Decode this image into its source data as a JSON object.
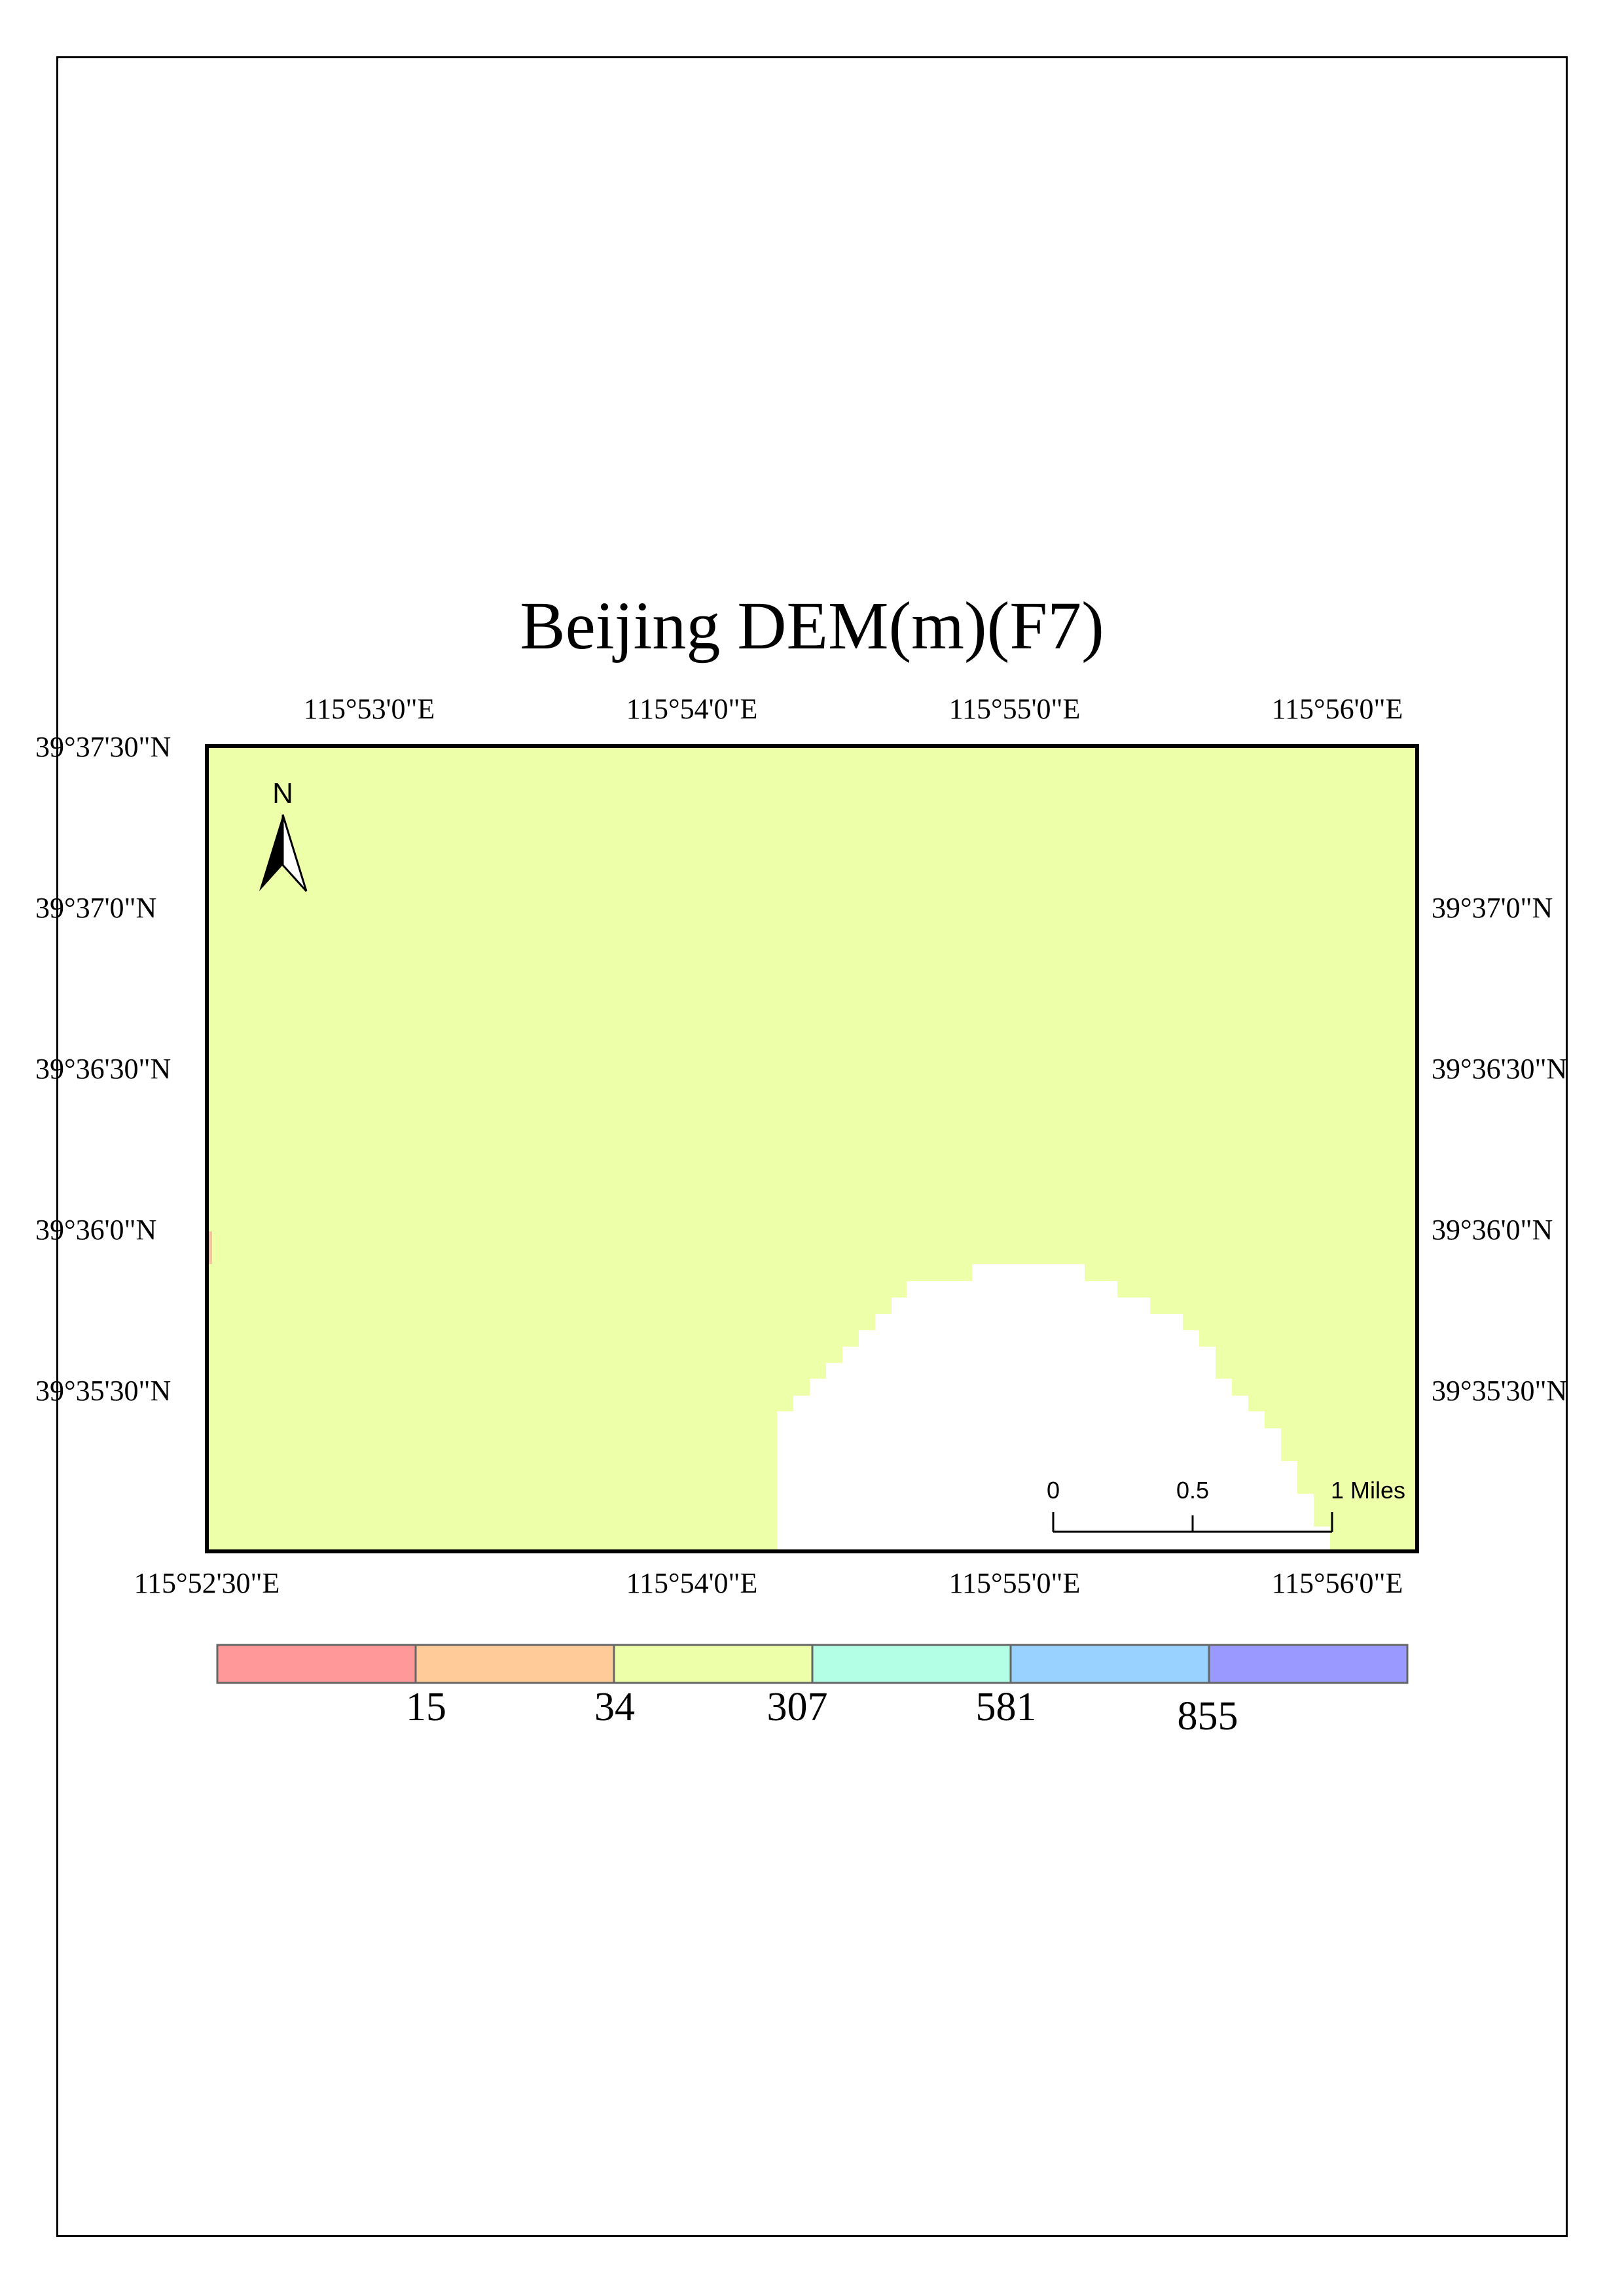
{
  "title": "Beijing DEM(m)(F7)",
  "map": {
    "raster_fill_color": "#EEFFAA",
    "nodata_color": "#FFFFFF",
    "frame_color": "#000000"
  },
  "graticule": {
    "top_labels": [
      "115°53'0\"E",
      "115°54'0\"E",
      "115°55'0\"E",
      "115°56'0\"E"
    ],
    "bottom_labels": [
      "115°52'30\"E",
      "115°54'0\"E",
      "115°55'0\"E",
      "115°56'0\"E"
    ],
    "left_labels": [
      "39°37'30\"N",
      "39°37'0\"N",
      "39°36'30\"N",
      "39°36'0\"N",
      "39°35'30\"N"
    ],
    "right_labels": [
      "39°37'0\"N",
      "39°36'30\"N",
      "39°36'0\"N",
      "39°35'30\"N"
    ]
  },
  "north_arrow": {
    "label": "N",
    "icon": "north-arrow-icon"
  },
  "scale_bar": {
    "ticks": [
      "0",
      "0.5",
      "1 Miles"
    ]
  },
  "legend": {
    "colors": [
      "#FF9999",
      "#FFCC99",
      "#EEFFAA",
      "#B3FFE6",
      "#99D1FF",
      "#9999FF"
    ],
    "break_labels": [
      "15",
      "34",
      "307",
      "581",
      "855"
    ]
  }
}
